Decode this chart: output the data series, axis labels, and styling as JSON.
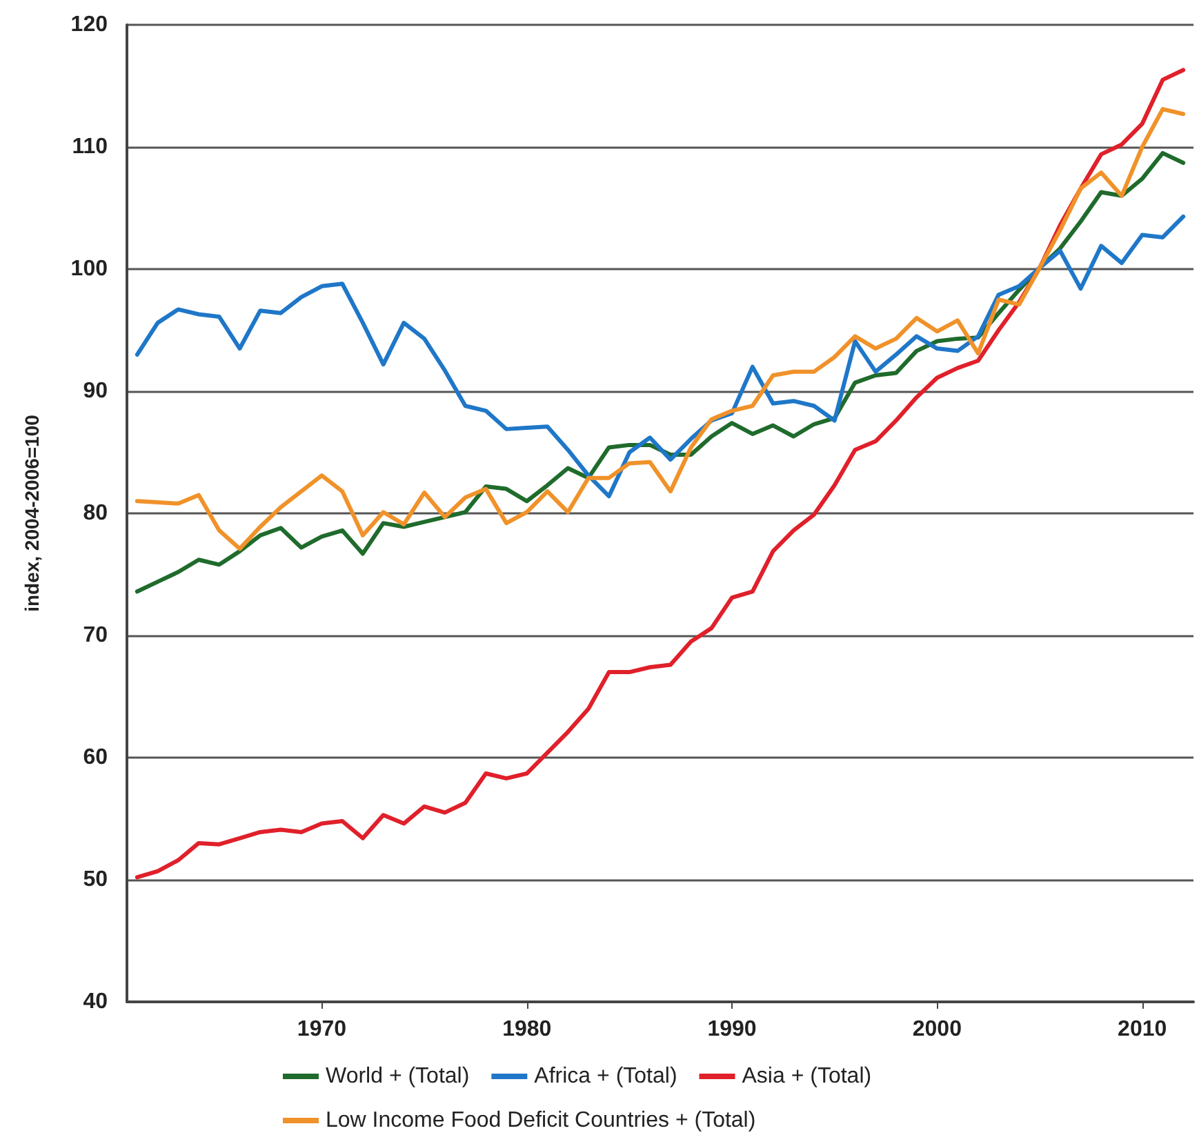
{
  "chart_data": {
    "type": "line",
    "ylabel": "index, 2004-2006=100",
    "x": [
      1961,
      1962,
      1963,
      1964,
      1965,
      1966,
      1967,
      1968,
      1969,
      1970,
      1971,
      1972,
      1973,
      1974,
      1975,
      1976,
      1977,
      1978,
      1979,
      1980,
      1981,
      1982,
      1983,
      1984,
      1985,
      1986,
      1987,
      1988,
      1989,
      1990,
      1991,
      1992,
      1993,
      1994,
      1995,
      1996,
      1997,
      1998,
      1999,
      2000,
      2001,
      2002,
      2003,
      2004,
      2005,
      2006,
      2007,
      2008,
      2009,
      2010,
      2011,
      2012
    ],
    "series": [
      {
        "name": "World + (Total)",
        "color": "#1f6b2c",
        "values": [
          73.6,
          74.4,
          75.2,
          76.2,
          75.8,
          76.9,
          78.2,
          78.8,
          77.2,
          78.1,
          78.6,
          76.7,
          79.2,
          78.9,
          79.3,
          79.7,
          80.1,
          82.2,
          82.0,
          81.0,
          82.3,
          83.7,
          82.9,
          85.4,
          85.6,
          85.6,
          84.8,
          84.8,
          86.3,
          87.4,
          86.5,
          87.2,
          86.3,
          87.3,
          87.8,
          90.7,
          91.3,
          91.5,
          93.3,
          94.1,
          94.3,
          94.4,
          96.4,
          98.3,
          100.1,
          101.7,
          103.9,
          106.3,
          106.0,
          107.4,
          109.5,
          108.7
        ]
      },
      {
        "name": "Africa + (Total)",
        "color": "#1f77c8",
        "values": [
          93.0,
          95.6,
          96.7,
          96.3,
          96.1,
          93.5,
          96.6,
          96.4,
          97.7,
          98.6,
          98.8,
          95.6,
          92.2,
          95.6,
          94.3,
          91.7,
          88.8,
          88.4,
          86.9,
          87.0,
          87.1,
          85.2,
          83.1,
          81.4,
          85.0,
          86.2,
          84.4,
          86.1,
          87.6,
          88.2,
          92.0,
          89.0,
          89.2,
          88.8,
          87.6,
          94.1,
          91.6,
          93.0,
          94.5,
          93.5,
          93.3,
          94.5,
          97.9,
          98.6,
          100.1,
          101.5,
          98.4,
          101.9,
          100.5,
          102.8,
          102.6,
          104.3
        ]
      },
      {
        "name": "Asia + (Total)",
        "color": "#e0202a",
        "values": [
          50.2,
          50.7,
          51.6,
          53.0,
          52.9,
          53.4,
          53.9,
          54.1,
          53.9,
          54.6,
          54.8,
          53.4,
          55.3,
          54.6,
          56.0,
          55.5,
          56.3,
          58.7,
          58.3,
          58.7,
          60.4,
          62.1,
          64.0,
          67.0,
          67.0,
          67.4,
          67.6,
          69.5,
          70.6,
          73.1,
          73.6,
          76.9,
          78.6,
          79.9,
          82.3,
          85.2,
          85.9,
          87.6,
          89.5,
          91.1,
          91.9,
          92.5,
          95.0,
          97.3,
          100.1,
          103.6,
          106.6,
          109.4,
          110.2,
          111.9,
          115.5,
          116.3
        ]
      },
      {
        "name": "Low Income Food Deficit Countries + (Total)",
        "color": "#f0922a",
        "values": [
          81.0,
          80.9,
          80.8,
          81.5,
          78.6,
          77.1,
          78.9,
          80.5,
          81.8,
          83.1,
          81.8,
          78.2,
          80.1,
          79.1,
          81.7,
          79.7,
          81.3,
          82.0,
          79.2,
          80.1,
          81.8,
          80.1,
          82.9,
          82.9,
          84.1,
          84.2,
          81.8,
          85.4,
          87.7,
          88.4,
          88.8,
          91.3,
          91.6,
          91.6,
          92.8,
          94.5,
          93.5,
          94.3,
          96.0,
          94.9,
          95.8,
          93.1,
          97.5,
          97.1,
          100.1,
          103.2,
          106.6,
          107.9,
          106.0,
          110.0,
          113.1,
          112.7
        ]
      }
    ],
    "xlim": [
      1960.5,
      2012.5
    ],
    "xticks": [
      1970,
      1980,
      1990,
      2000,
      2010
    ],
    "ylim": [
      40,
      120
    ],
    "yticks": [
      40,
      50,
      60,
      70,
      80,
      90,
      100,
      110,
      120
    ],
    "grid": "y",
    "legend": "bottom",
    "marker": "none",
    "line_style": "solid"
  }
}
